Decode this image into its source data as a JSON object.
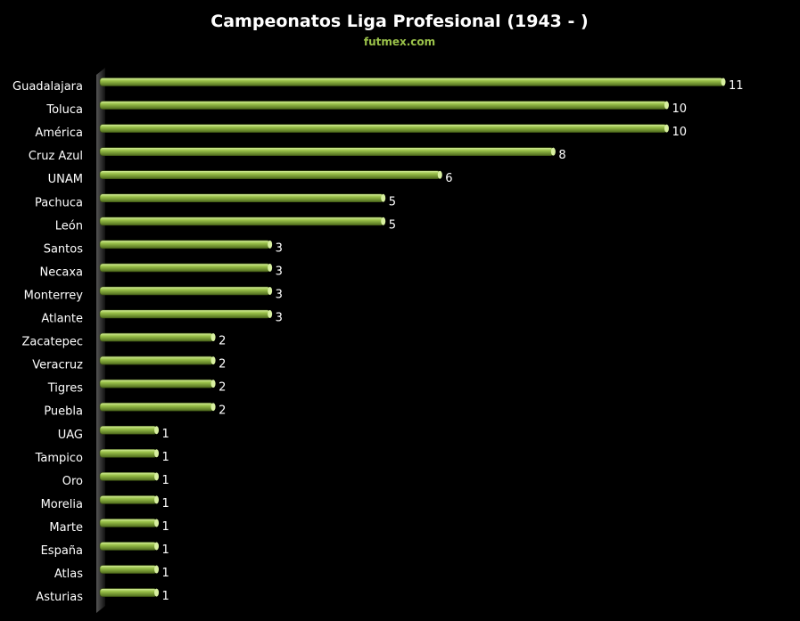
{
  "chart_data": {
    "type": "bar",
    "orientation": "horizontal",
    "title": "Campeonatos Liga Profesional (1943 - )",
    "subtitle": "futmex.com",
    "categories": [
      "Guadalajara",
      "Toluca",
      "América",
      "Cruz Azul",
      "UNAM",
      "Pachuca",
      "León",
      "Santos",
      "Necaxa",
      "Monterrey",
      "Atlante",
      "Zacatepec",
      "Veracruz",
      "Tigres",
      "Puebla",
      "UAG",
      "Tampico",
      "Oro",
      "Morelia",
      "Marte",
      "España",
      "Atlas",
      "Asturias"
    ],
    "values": [
      11,
      10,
      10,
      8,
      6,
      5,
      5,
      3,
      3,
      3,
      3,
      2,
      2,
      2,
      2,
      1,
      1,
      1,
      1,
      1,
      1,
      1,
      1
    ],
    "xlim": [
      0,
      11
    ],
    "grid": false,
    "legend": "none",
    "colors": {
      "background": "#000000",
      "bar": "#9bc24a",
      "bar_highlight": "#d8f0a0",
      "bar_shadow": "#4e6a1c",
      "axis_wall": "#2a2a2a"
    }
  }
}
